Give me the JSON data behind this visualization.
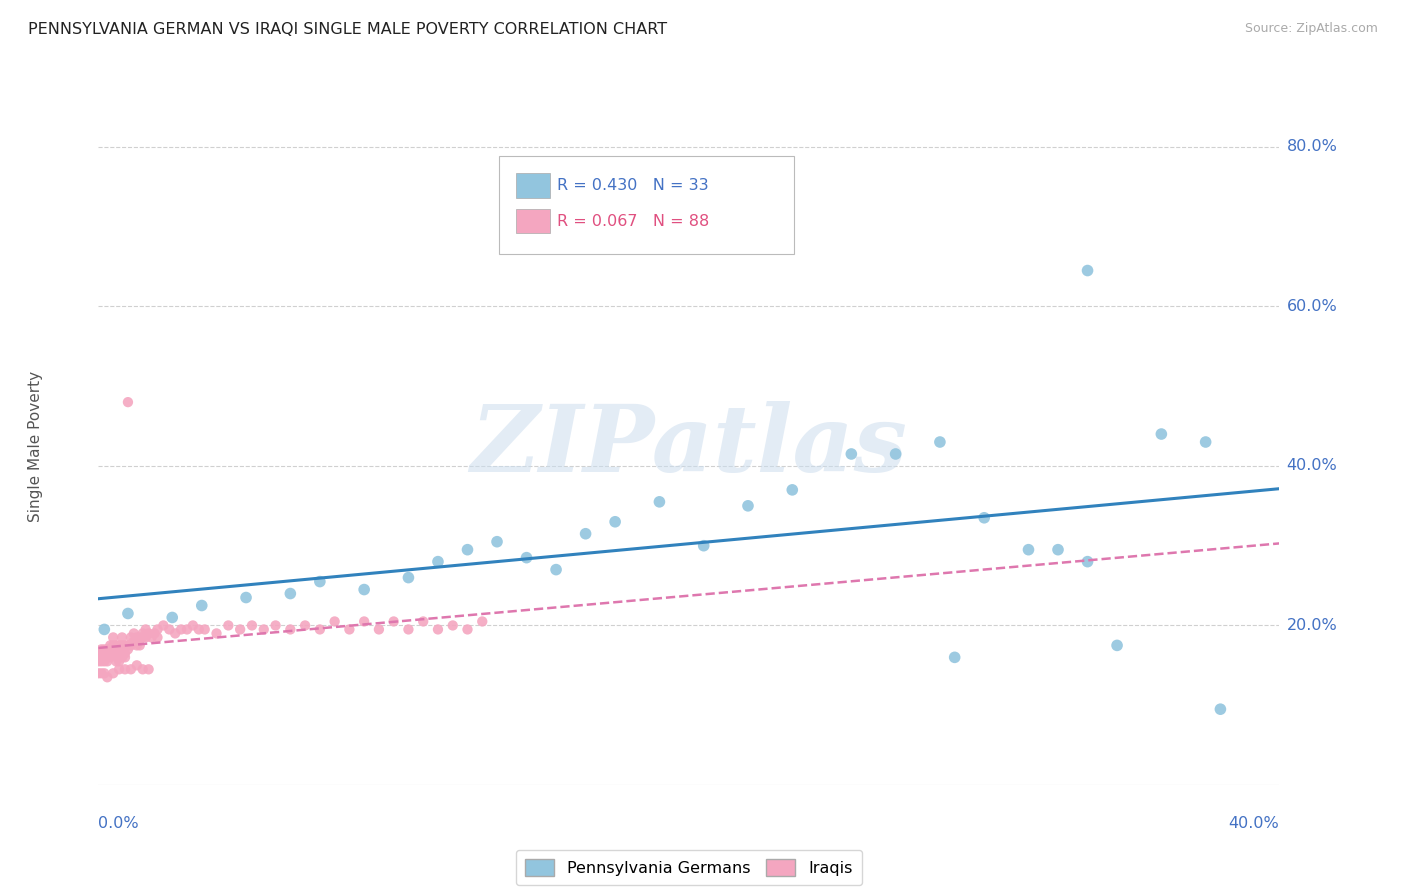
{
  "title": "PENNSYLVANIA GERMAN VS IRAQI SINGLE MALE POVERTY CORRELATION CHART",
  "source": "Source: ZipAtlas.com",
  "ylabel": "Single Male Poverty",
  "x_range": [
    0.0,
    0.4
  ],
  "y_range": [
    0.0,
    0.85
  ],
  "y_ticks": [
    0.2,
    0.4,
    0.6,
    0.8
  ],
  "y_tick_labels": [
    "20.0%",
    "40.0%",
    "60.0%",
    "80.0%"
  ],
  "legend_blue_R": "R = 0.430",
  "legend_blue_N": "N = 33",
  "legend_pink_R": "R = 0.067",
  "legend_pink_N": "N = 88",
  "blue_color": "#92c5de",
  "pink_color": "#f4a6c0",
  "trendline_blue_color": "#3182bd",
  "trendline_pink_color": "#de77ae",
  "blue_x": [
    0.002,
    0.01,
    0.025,
    0.035,
    0.05,
    0.065,
    0.075,
    0.09,
    0.105,
    0.115,
    0.125,
    0.135,
    0.145,
    0.155,
    0.165,
    0.175,
    0.19,
    0.205,
    0.22,
    0.235,
    0.255,
    0.27,
    0.285,
    0.3,
    0.315,
    0.325,
    0.335,
    0.345,
    0.36,
    0.375,
    0.29,
    0.335,
    0.38
  ],
  "blue_y": [
    0.195,
    0.215,
    0.21,
    0.225,
    0.235,
    0.24,
    0.255,
    0.245,
    0.26,
    0.28,
    0.295,
    0.305,
    0.285,
    0.27,
    0.315,
    0.33,
    0.355,
    0.3,
    0.35,
    0.37,
    0.415,
    0.415,
    0.43,
    0.335,
    0.295,
    0.295,
    0.28,
    0.175,
    0.44,
    0.43,
    0.16,
    0.645,
    0.095
  ],
  "pink_x": [
    0.0,
    0.0,
    0.001,
    0.001,
    0.001,
    0.002,
    0.002,
    0.002,
    0.003,
    0.003,
    0.003,
    0.004,
    0.004,
    0.004,
    0.005,
    0.005,
    0.005,
    0.006,
    0.006,
    0.006,
    0.007,
    0.007,
    0.007,
    0.008,
    0.008,
    0.008,
    0.009,
    0.009,
    0.009,
    0.01,
    0.01,
    0.011,
    0.011,
    0.012,
    0.012,
    0.013,
    0.013,
    0.014,
    0.014,
    0.015,
    0.015,
    0.016,
    0.016,
    0.017,
    0.018,
    0.019,
    0.02,
    0.02,
    0.022,
    0.024,
    0.026,
    0.028,
    0.03,
    0.032,
    0.034,
    0.036,
    0.04,
    0.044,
    0.048,
    0.052,
    0.056,
    0.06,
    0.065,
    0.07,
    0.075,
    0.08,
    0.085,
    0.09,
    0.095,
    0.1,
    0.105,
    0.11,
    0.115,
    0.12,
    0.125,
    0.13,
    0.0,
    0.001,
    0.002,
    0.003,
    0.005,
    0.007,
    0.009,
    0.011,
    0.013,
    0.015,
    0.017,
    0.01
  ],
  "pink_y": [
    0.155,
    0.165,
    0.17,
    0.155,
    0.165,
    0.16,
    0.155,
    0.17,
    0.165,
    0.155,
    0.17,
    0.175,
    0.16,
    0.165,
    0.185,
    0.165,
    0.175,
    0.17,
    0.175,
    0.155,
    0.175,
    0.155,
    0.165,
    0.16,
    0.175,
    0.185,
    0.165,
    0.175,
    0.16,
    0.17,
    0.175,
    0.185,
    0.175,
    0.19,
    0.18,
    0.175,
    0.185,
    0.185,
    0.175,
    0.19,
    0.185,
    0.195,
    0.185,
    0.19,
    0.185,
    0.19,
    0.195,
    0.185,
    0.2,
    0.195,
    0.19,
    0.195,
    0.195,
    0.2,
    0.195,
    0.195,
    0.19,
    0.2,
    0.195,
    0.2,
    0.195,
    0.2,
    0.195,
    0.2,
    0.195,
    0.205,
    0.195,
    0.205,
    0.195,
    0.205,
    0.195,
    0.205,
    0.195,
    0.2,
    0.195,
    0.205,
    0.14,
    0.14,
    0.14,
    0.135,
    0.14,
    0.145,
    0.145,
    0.145,
    0.15,
    0.145,
    0.145,
    0.48
  ],
  "watermark_text": "ZIPatlas",
  "background_color": "#ffffff",
  "grid_color": "#d0d0d0",
  "spine_color": "#d0d0d0"
}
